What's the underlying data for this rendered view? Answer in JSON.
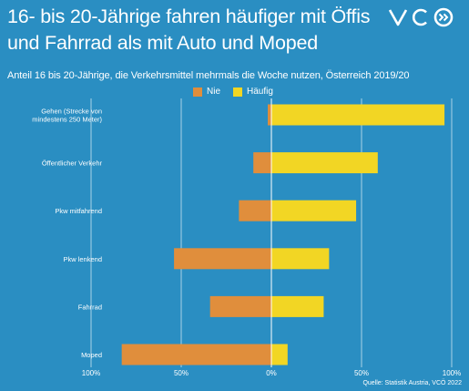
{
  "header": {
    "title_line1": "16- bis 20-Jährige fahren häufiger mit Öffis",
    "title_line2": "und Fahrrad als mit Auto und Moped",
    "subtitle": "Anteil 16 bis 20-Jährige, die Verkehrsmittel mehrmals die Woche nutzen, Österreich 2019/20",
    "logo_text": "VCÖ"
  },
  "source": "Quelle: Statistik Austria, VCÖ 2022",
  "colors": {
    "background": "#2a8ec2",
    "nie": "#e08e3c",
    "haeufig": "#f2d624",
    "gridline": "#ffffff"
  },
  "chart_data": {
    "type": "bar",
    "orientation": "horizontal-diverging",
    "categories": [
      [
        "Gehen (Strecke von",
        "mindestens 250 Meter)"
      ],
      [
        "Öffentlicher Verkehr"
      ],
      [
        "Pkw mitfahrend"
      ],
      [
        "Pkw lenkend"
      ],
      [
        "Fahrrad"
      ],
      [
        "Moped"
      ]
    ],
    "series": [
      {
        "name": "Nie",
        "values": [
          2,
          10,
          18,
          54,
          34,
          83
        ]
      },
      {
        "name": "Häufig",
        "values": [
          96,
          59,
          47,
          32,
          29,
          9
        ]
      }
    ],
    "xlim": [
      -100,
      100
    ],
    "xticks": [
      -100,
      -50,
      0,
      50,
      100
    ],
    "xtick_labels": [
      "100%",
      "50%",
      "0%",
      "50%",
      "100%"
    ],
    "grid": true,
    "legend_position": "top"
  }
}
